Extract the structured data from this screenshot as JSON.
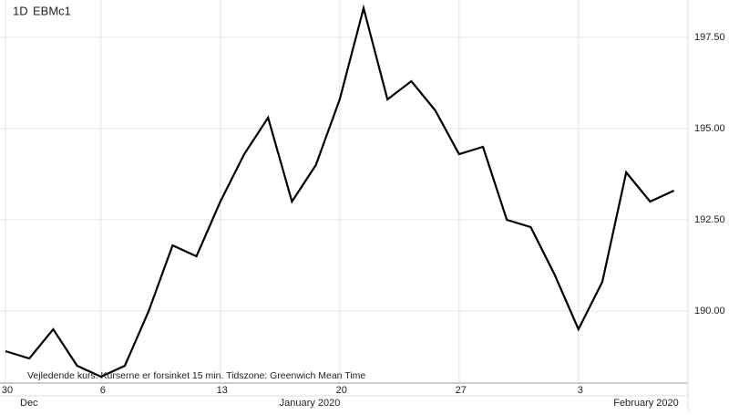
{
  "chart_data": {
    "type": "line",
    "interval": "1D",
    "symbol": "EBMc1",
    "note": "Vejledende kurs. Kurserne er forsinket 15 min.   Tidszone: Greenwich Mean Time",
    "categories": [
      "30",
      null,
      null,
      null,
      "6",
      null,
      null,
      null,
      null,
      "13",
      null,
      null,
      null,
      null,
      "20",
      null,
      null,
      null,
      null,
      "27",
      null,
      null,
      null,
      null,
      "3",
      null,
      null,
      null,
      null
    ],
    "month_labels": [
      "Dec",
      "January 2020",
      "February 2020"
    ],
    "series": [
      {
        "name": "EBMc1",
        "color": "#000000",
        "values": [
          188.9,
          188.7,
          189.5,
          188.5,
          188.2,
          188.5,
          190.0,
          191.8,
          191.5,
          193.0,
          194.3,
          195.3,
          193.0,
          194.0,
          195.8,
          198.3,
          195.8,
          196.3,
          195.5,
          194.3,
          194.5,
          192.5,
          192.3,
          191.0,
          189.5,
          190.8,
          193.8,
          193.0,
          193.3
        ]
      }
    ],
    "ylim": [
      188.025,
      198.525
    ],
    "yticks": [
      {
        "value": 190,
        "label": "190.00"
      },
      {
        "value": 192.5,
        "label": "192.50"
      },
      {
        "value": 195,
        "label": "195.00"
      },
      {
        "value": 197.5,
        "label": "197.50"
      }
    ],
    "grid": true
  }
}
